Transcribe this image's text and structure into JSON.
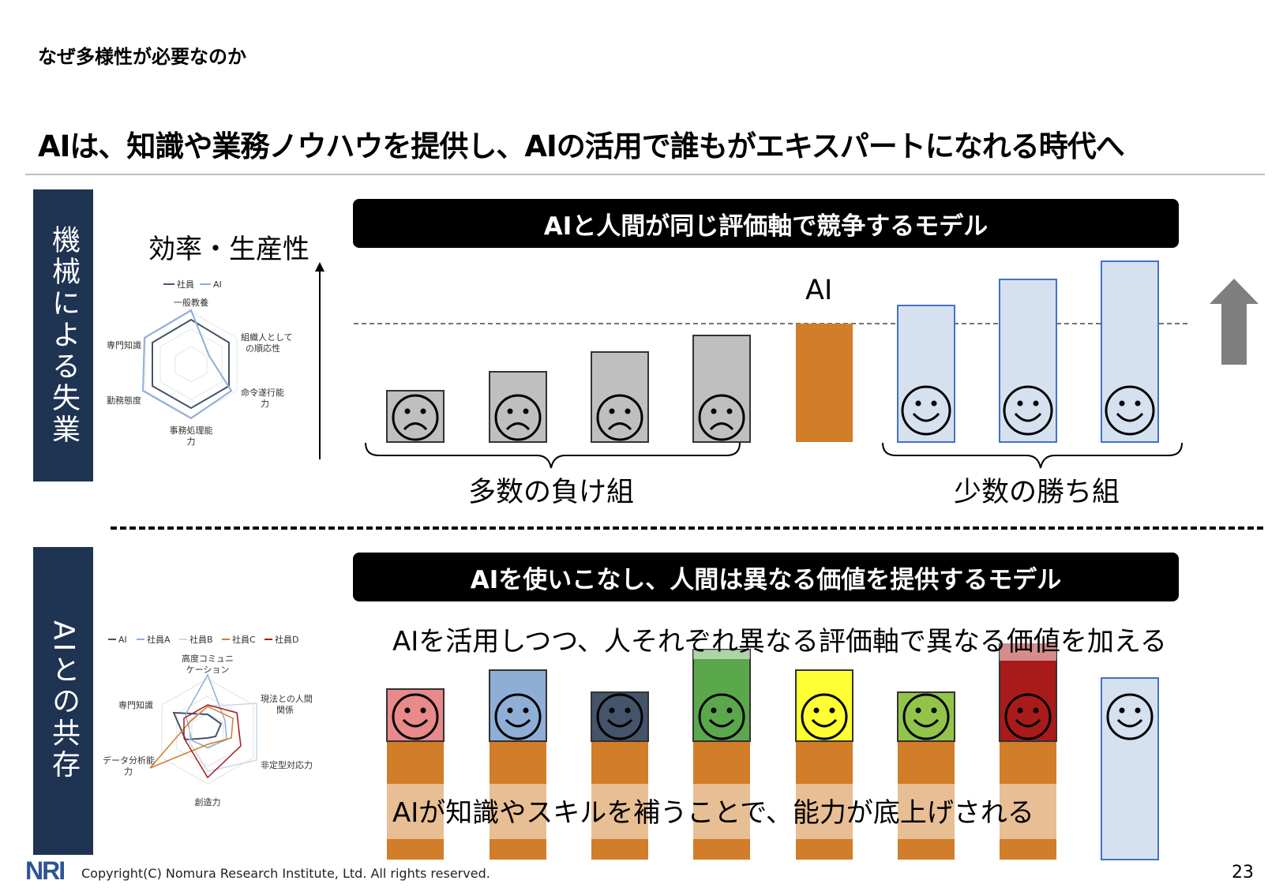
{
  "section_title": "なぜ多様性が必要なのか",
  "headline": "AIは、知識や業務ノウハウを提供し、AIの活用で誰もがエキスパートになれる時代へ",
  "top": {
    "sidebar_label": "機械による失業",
    "banner": "AIと人間が同じ評価軸で競争するモデル",
    "axis_label": "効率・生産性",
    "ai_label": "AI",
    "losers_label": "多数の負け組",
    "winners_label": "少数の勝ち組",
    "radar": {
      "legend": [
        "社員",
        "AI"
      ],
      "axes": [
        "一般教養",
        "組織人としての順応性",
        "命令遂行能力",
        "事務処理能力",
        "勤務態度",
        "専門知識"
      ],
      "axes_display": [
        "一般教養",
        "組織人として",
        "の順応性",
        "命令遂行能",
        "力",
        "事務処理能",
        "力",
        "勤務態度",
        "専門知識"
      ]
    },
    "colors": {
      "gray": "#bfbfbf",
      "orange": "#d17d29",
      "blue": "#d6e1ef",
      "blue_border": "#4472c4"
    }
  },
  "bottom": {
    "sidebar_label": "AIとの共存",
    "banner": "AIを使いこなし、人間は異なる価値を提供するモデル",
    "caption_top": "AIを活用しつつ、人それぞれ異なる評価軸で異なる価値を加える",
    "caption_bottom": "AIが知識やスキルを補うことで、能力が底上げされる",
    "radar": {
      "legend": [
        "AI",
        "社員A",
        "社員B",
        "社員C",
        "社員D"
      ],
      "axes_display": [
        "高度コミュニ",
        "ケーション",
        "現法との人間",
        "関係",
        "非定型対応力",
        "創造力",
        "データ分析能",
        "力",
        "専門知識"
      ]
    },
    "face_colors": [
      "#e8898a",
      "#8eaed6",
      "#44546a",
      "#5ba84c",
      "#ffff33",
      "#92c44a",
      "#a91b1b",
      "#d6e1ef"
    ]
  },
  "footer": {
    "logo": "NRI",
    "copyright": "Copyright(C) Nomura Research Institute, Ltd. All rights reserved.",
    "page": "23"
  }
}
